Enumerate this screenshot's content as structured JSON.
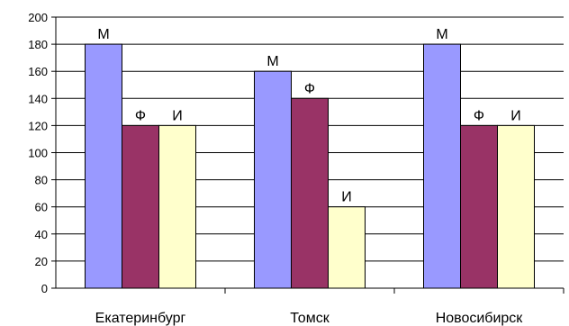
{
  "chart_data": {
    "type": "bar",
    "categories": [
      "Екатеринбург",
      "Томск",
      "Новосибирск"
    ],
    "series": [
      {
        "label": "М",
        "color": "#9999ff",
        "values": [
          180,
          160,
          180
        ]
      },
      {
        "label": "Ф",
        "color": "#993366",
        "values": [
          120,
          140,
          120
        ]
      },
      {
        "label": "И",
        "color": "#ffffcc",
        "values": [
          120,
          60,
          120
        ]
      }
    ],
    "ylim": [
      0,
      200
    ],
    "yticks": [
      0,
      20,
      40,
      60,
      80,
      100,
      120,
      140,
      160,
      180,
      200
    ],
    "grid": true,
    "legend": "none"
  }
}
